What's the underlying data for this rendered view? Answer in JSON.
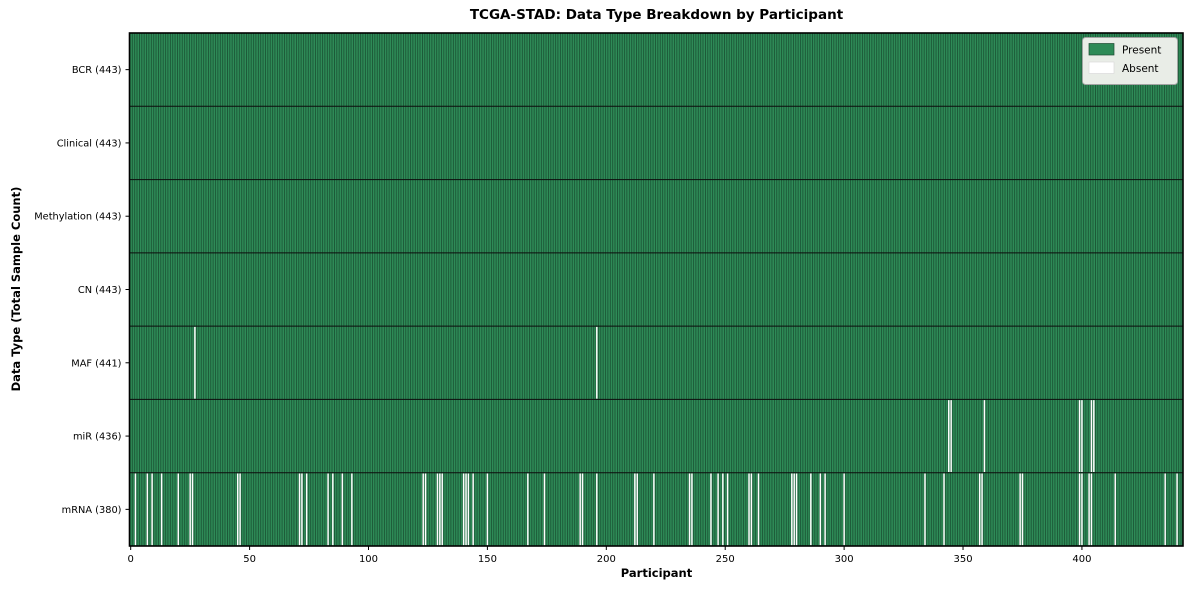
{
  "chart_data": {
    "type": "heatmap",
    "title": "TCGA-STAD: Data Type Breakdown by Participant",
    "xlabel": "Participant",
    "ylabel": "Data Type (Total Sample Count)",
    "n_participants": 443,
    "x_ticks": [
      0,
      50,
      100,
      150,
      200,
      250,
      300,
      350,
      400
    ],
    "colors": {
      "present": "#2E8B57",
      "absent": "#FFFFFF",
      "cell_edge": "#123C26",
      "row_divider": "#0D0D0D",
      "plot_border": "#000000",
      "legend_bg": "#E9EDE7",
      "legend_border": "#A3A3A3"
    },
    "legend": [
      {
        "label": "Present",
        "color": "#2E8B57"
      },
      {
        "label": "Absent",
        "color": "#FFFFFF"
      }
    ],
    "rows": [
      {
        "data_type": "BCR",
        "label": "BCR (443)",
        "present_count": 443,
        "absent_participants": []
      },
      {
        "data_type": "Clinical",
        "label": "Clinical (443)",
        "present_count": 443,
        "absent_participants": []
      },
      {
        "data_type": "Methylation",
        "label": "Methylation (443)",
        "present_count": 443,
        "absent_participants": []
      },
      {
        "data_type": "CN",
        "label": "CN (443)",
        "present_count": 443,
        "absent_participants": []
      },
      {
        "data_type": "MAF",
        "label": "MAF (441)",
        "present_count": 441,
        "absent_participants": [
          27,
          196
        ]
      },
      {
        "data_type": "miR",
        "label": "miR (436)",
        "present_count": 436,
        "absent_participants": [
          344,
          345,
          359,
          399,
          400,
          404,
          405
        ]
      },
      {
        "data_type": "mRNA",
        "label": "mRNA (380)",
        "present_count": 380,
        "absent_participants": [
          2,
          7,
          9,
          13,
          20,
          25,
          26,
          45,
          46,
          71,
          72,
          74,
          83,
          85,
          89,
          93,
          123,
          124,
          129,
          130,
          131,
          140,
          141,
          142,
          144,
          150,
          167,
          174,
          189,
          190,
          196,
          212,
          213,
          220,
          235,
          236,
          244,
          247,
          249,
          251,
          260,
          261,
          264,
          278,
          279,
          280,
          286,
          290,
          292,
          300,
          334,
          342,
          357,
          358,
          374,
          375,
          399,
          400,
          403,
          404,
          414,
          435,
          440
        ]
      }
    ]
  }
}
